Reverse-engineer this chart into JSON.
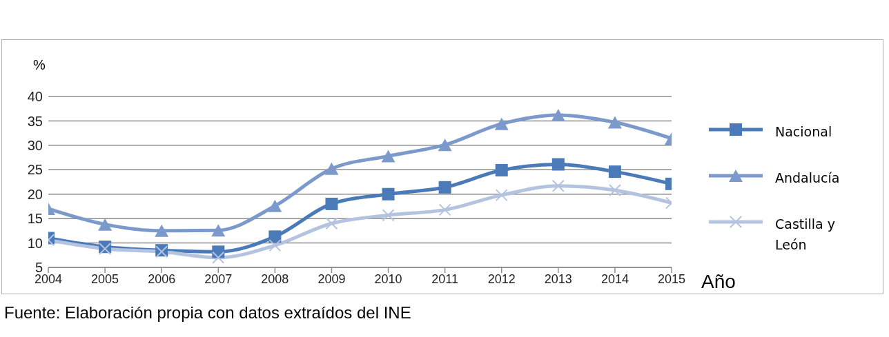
{
  "chart_data": {
    "type": "line",
    "ylabel": "%",
    "xlabel": "Año",
    "categories": [
      "2004",
      "2005",
      "2006",
      "2007",
      "2008",
      "2009",
      "2010",
      "2011",
      "2012",
      "2013",
      "2014",
      "2015"
    ],
    "series": [
      {
        "name": "Nacional",
        "color": "#4a7ab7",
        "marker": "square",
        "values": [
          11,
          9.2,
          8.5,
          8.2,
          11.3,
          18,
          20,
          21.4,
          24.9,
          26.1,
          24.6,
          22.1
        ]
      },
      {
        "name": "Andalucía",
        "color": "#7b9acb",
        "marker": "triangle",
        "values": [
          17,
          13.8,
          12.5,
          12.6,
          17.6,
          25.2,
          27.8,
          30.1,
          34.4,
          36.2,
          34.7,
          31.4
        ]
      },
      {
        "name": "Castilla y León",
        "color": "#b4c3df",
        "marker": "cross",
        "values": [
          10.6,
          8.8,
          8.2,
          7,
          9.5,
          14,
          15.7,
          16.8,
          19.8,
          21.7,
          20.8,
          18.2
        ]
      }
    ],
    "ylim": [
      5,
      40
    ],
    "yticks": [
      5,
      10,
      15,
      20,
      25,
      30,
      35,
      40
    ],
    "grid": "y",
    "legend": "right",
    "line_style": "solid",
    "annotations": [
      "Fuente: Elaboración propia con datos extraídos del INE"
    ]
  }
}
